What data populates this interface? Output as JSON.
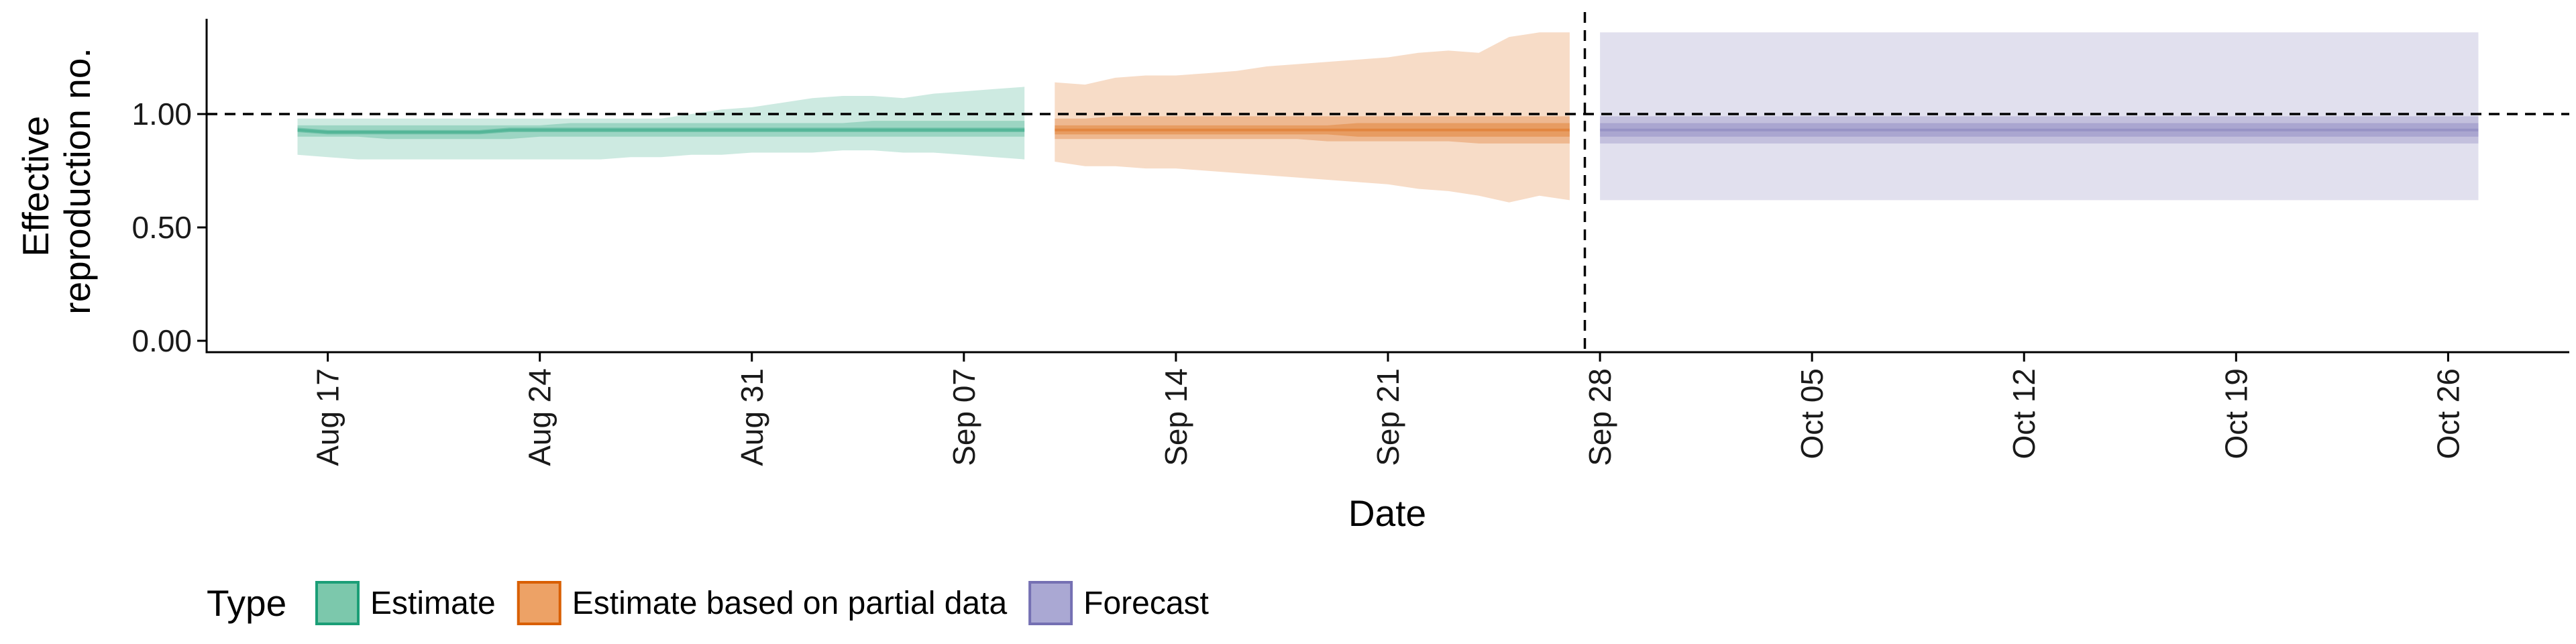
{
  "chart_data": {
    "type": "area",
    "xlabel": "Date",
    "ylabel_lines": [
      "Effective",
      "reproduction no."
    ],
    "ylim": [
      0,
      1.4
    ],
    "yticks": [
      0,
      0.5,
      1,
      1.5
    ],
    "ytick_labels": [
      "0.00",
      "0.50",
      "1.00"
    ],
    "xlim": [
      "2020-08-13",
      "2020-10-30"
    ],
    "xticks": [
      "2020-08-17",
      "2020-08-24",
      "2020-08-31",
      "2020-09-07",
      "2020-09-14",
      "2020-09-21",
      "2020-09-28",
      "2020-10-05",
      "2020-10-12",
      "2020-10-19",
      "2020-10-26"
    ],
    "xtick_labels": [
      "Aug 17",
      "Aug 24",
      "Aug 31",
      "Sep 07",
      "Sep 14",
      "Sep 21",
      "Sep 28",
      "Oct 05",
      "Oct 12",
      "Oct 19",
      "Oct 26"
    ],
    "reference_hline": 1.0,
    "reference_vline": "2020-09-27",
    "legend": {
      "title": "Type",
      "position": "bottom-left",
      "entries": [
        {
          "label": "Estimate",
          "fill": "#7cc8ac",
          "stroke": "#1b9e77"
        },
        {
          "label": "Estimate based on partial data",
          "fill": "#eda266",
          "stroke": "#d95f02"
        },
        {
          "label": "Forecast",
          "fill": "#aaa8d3",
          "stroke": "#7570b3"
        }
      ]
    },
    "series": [
      {
        "name": "Estimate",
        "color": "#1b9e77",
        "x": [
          "2020-08-16",
          "2020-08-17",
          "2020-08-18",
          "2020-08-19",
          "2020-08-20",
          "2020-08-21",
          "2020-08-22",
          "2020-08-23",
          "2020-08-24",
          "2020-08-25",
          "2020-08-26",
          "2020-08-27",
          "2020-08-28",
          "2020-08-29",
          "2020-08-30",
          "2020-08-31",
          "2020-09-01",
          "2020-09-02",
          "2020-09-03",
          "2020-09-04",
          "2020-09-05",
          "2020-09-06",
          "2020-09-07",
          "2020-09-08",
          "2020-09-09"
        ],
        "median": [
          0.93,
          0.92,
          0.92,
          0.92,
          0.92,
          0.92,
          0.92,
          0.93,
          0.93,
          0.93,
          0.93,
          0.93,
          0.93,
          0.93,
          0.93,
          0.93,
          0.93,
          0.93,
          0.93,
          0.93,
          0.93,
          0.93,
          0.93,
          0.93,
          0.93
        ],
        "lower_90": [
          0.82,
          0.81,
          0.8,
          0.8,
          0.8,
          0.8,
          0.8,
          0.8,
          0.8,
          0.8,
          0.8,
          0.81,
          0.81,
          0.82,
          0.82,
          0.83,
          0.83,
          0.83,
          0.84,
          0.84,
          0.83,
          0.83,
          0.82,
          0.81,
          0.8
        ],
        "upper_90": [
          0.98,
          0.98,
          0.98,
          0.98,
          0.98,
          0.98,
          0.98,
          0.98,
          0.98,
          0.98,
          0.98,
          0.98,
          0.98,
          1.0,
          1.02,
          1.03,
          1.05,
          1.07,
          1.08,
          1.08,
          1.07,
          1.09,
          1.1,
          1.11,
          1.12
        ],
        "lower_50": [
          0.9,
          0.9,
          0.9,
          0.89,
          0.89,
          0.89,
          0.89,
          0.89,
          0.9,
          0.9,
          0.9,
          0.9,
          0.9,
          0.9,
          0.9,
          0.9,
          0.9,
          0.9,
          0.9,
          0.9,
          0.9,
          0.9,
          0.9,
          0.9,
          0.9
        ],
        "upper_50": [
          0.95,
          0.95,
          0.95,
          0.95,
          0.95,
          0.95,
          0.95,
          0.95,
          0.95,
          0.96,
          0.96,
          0.96,
          0.96,
          0.96,
          0.96,
          0.96,
          0.96,
          0.96,
          0.96,
          0.97,
          0.97,
          0.97,
          0.97,
          0.97,
          0.97
        ],
        "lower_20": [
          0.92,
          0.91,
          0.91,
          0.91,
          0.91,
          0.91,
          0.91,
          0.92,
          0.92,
          0.92,
          0.92,
          0.92,
          0.92,
          0.92,
          0.92,
          0.92,
          0.92,
          0.92,
          0.92,
          0.92,
          0.92,
          0.92,
          0.92,
          0.92,
          0.92
        ],
        "upper_20": [
          0.94,
          0.93,
          0.93,
          0.93,
          0.93,
          0.93,
          0.93,
          0.94,
          0.94,
          0.94,
          0.94,
          0.94,
          0.94,
          0.94,
          0.94,
          0.94,
          0.94,
          0.94,
          0.94,
          0.94,
          0.94,
          0.94,
          0.94,
          0.94,
          0.94
        ]
      },
      {
        "name": "Estimate based on partial data",
        "color": "#d95f02",
        "x": [
          "2020-09-10",
          "2020-09-11",
          "2020-09-12",
          "2020-09-13",
          "2020-09-14",
          "2020-09-15",
          "2020-09-16",
          "2020-09-17",
          "2020-09-18",
          "2020-09-19",
          "2020-09-20",
          "2020-09-21",
          "2020-09-22",
          "2020-09-23",
          "2020-09-24",
          "2020-09-25",
          "2020-09-26",
          "2020-09-27"
        ],
        "median": [
          0.93,
          0.93,
          0.93,
          0.93,
          0.93,
          0.93,
          0.93,
          0.93,
          0.93,
          0.93,
          0.93,
          0.93,
          0.93,
          0.93,
          0.93,
          0.93,
          0.93,
          0.93
        ],
        "lower_90": [
          0.79,
          0.77,
          0.77,
          0.76,
          0.76,
          0.75,
          0.74,
          0.73,
          0.72,
          0.71,
          0.7,
          0.69,
          0.67,
          0.66,
          0.64,
          0.61,
          0.64,
          0.62
        ],
        "upper_90": [
          1.14,
          1.13,
          1.16,
          1.17,
          1.17,
          1.18,
          1.19,
          1.21,
          1.22,
          1.23,
          1.24,
          1.25,
          1.27,
          1.28,
          1.27,
          1.34,
          1.36,
          1.36
        ],
        "lower_50": [
          0.89,
          0.89,
          0.89,
          0.89,
          0.89,
          0.89,
          0.89,
          0.89,
          0.89,
          0.88,
          0.88,
          0.88,
          0.88,
          0.88,
          0.87,
          0.87,
          0.87,
          0.87
        ],
        "upper_50": [
          0.98,
          0.98,
          0.99,
          0.99,
          0.99,
          0.99,
          0.99,
          0.99,
          0.99,
          0.99,
          0.99,
          0.99,
          0.99,
          0.99,
          0.99,
          0.99,
          0.99,
          0.99
        ],
        "lower_20": [
          0.91,
          0.91,
          0.91,
          0.91,
          0.91,
          0.91,
          0.91,
          0.91,
          0.91,
          0.91,
          0.9,
          0.9,
          0.9,
          0.9,
          0.9,
          0.9,
          0.9,
          0.9
        ],
        "upper_20": [
          0.95,
          0.95,
          0.95,
          0.95,
          0.95,
          0.95,
          0.95,
          0.95,
          0.95,
          0.95,
          0.96,
          0.96,
          0.96,
          0.96,
          0.96,
          0.96,
          0.96,
          0.96
        ]
      },
      {
        "name": "Forecast",
        "color": "#7570b3",
        "x": [
          "2020-09-28",
          "2020-10-27"
        ],
        "median": [
          0.93,
          0.93
        ],
        "lower_90": [
          0.62,
          0.62
        ],
        "upper_90": [
          1.36,
          1.36
        ],
        "lower_50": [
          0.87,
          0.87
        ],
        "upper_50": [
          0.99,
          0.99
        ],
        "lower_20": [
          0.9,
          0.9
        ],
        "upper_20": [
          0.96,
          0.96
        ]
      }
    ]
  }
}
